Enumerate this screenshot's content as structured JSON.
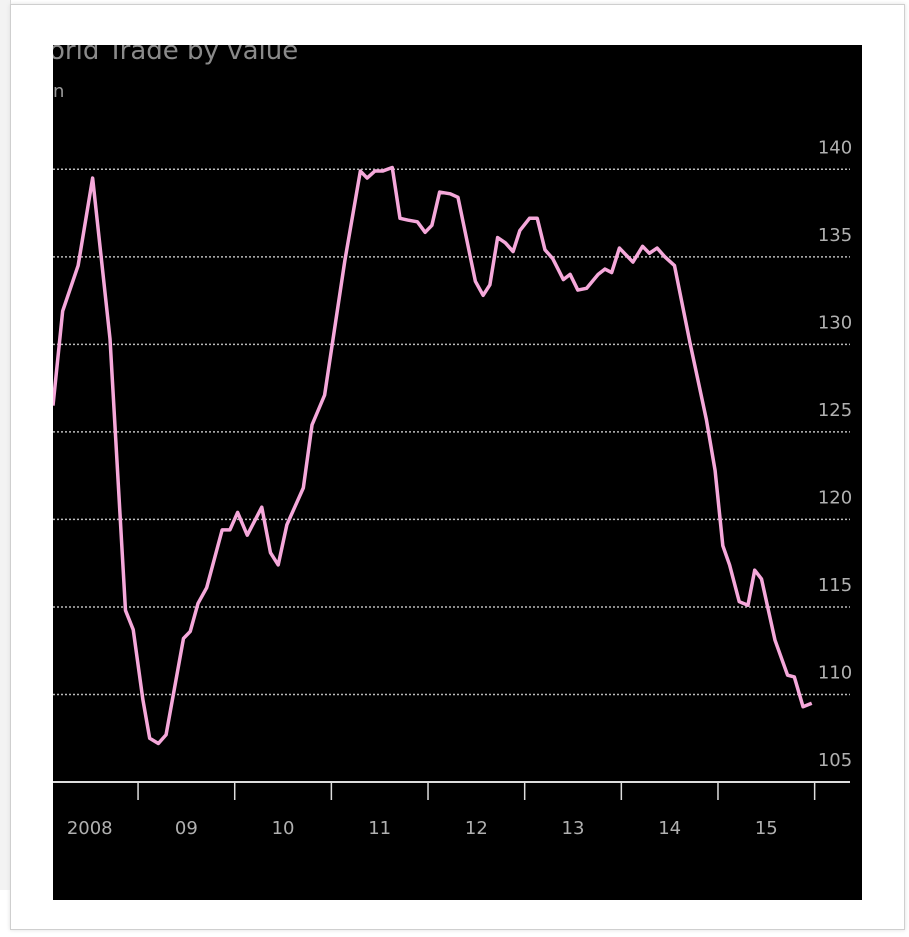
{
  "chart_data": {
    "type": "line",
    "title": "orld Trade by value",
    "subtitle": "n",
    "x": [
      2008.12,
      2008.22,
      2008.38,
      2008.53,
      2008.71,
      2008.87,
      2008.95,
      2009.05,
      2009.12,
      2009.21,
      2009.29,
      2009.47,
      2009.54,
      2009.62,
      2009.71,
      2009.87,
      2009.95,
      2010.03,
      2010.13,
      2010.28,
      2010.37,
      2010.45,
      2010.54,
      2010.71,
      2010.8,
      2010.93,
      2011.14,
      2011.3,
      2011.37,
      2011.45,
      2011.53,
      2011.63,
      2011.71,
      2011.79,
      2011.89,
      2011.97,
      2012.04,
      2012.12,
      2012.23,
      2012.31,
      2012.49,
      2012.57,
      2012.64,
      2012.72,
      2012.8,
      2012.88,
      2012.95,
      2013.05,
      2013.13,
      2013.21,
      2013.29,
      2013.4,
      2013.47,
      2013.55,
      2013.64,
      2013.76,
      2013.83,
      2013.9,
      2013.98,
      2014.12,
      2014.22,
      2014.29,
      2014.37,
      2014.45,
      2014.55,
      2014.71,
      2014.88,
      2014.97,
      2015.05,
      2015.12,
      2015.22,
      2015.31,
      2015.38,
      2015.45,
      2015.59,
      2015.72,
      2015.79,
      2015.88,
      2015.97
    ],
    "series": [
      {
        "color": "#f5a8da",
        "values": [
          126.5,
          131.9,
          134.5,
          139.5,
          130.3,
          114.8,
          113.7,
          109.7,
          107.5,
          107.2,
          107.7,
          113.2,
          113.6,
          115.2,
          116.1,
          119.4,
          119.4,
          120.4,
          119.1,
          120.7,
          118.1,
          117.4,
          119.7,
          121.8,
          125.4,
          127.1,
          134.8,
          139.9,
          139.5,
          139.9,
          139.9,
          140.1,
          137.2,
          137.1,
          137.0,
          136.4,
          136.8,
          138.7,
          138.6,
          138.4,
          133.6,
          132.8,
          133.4,
          136.1,
          135.8,
          135.3,
          136.5,
          137.2,
          137.2,
          135.4,
          134.9,
          133.7,
          134.0,
          133.1,
          133.2,
          134.0,
          134.3,
          134.1,
          135.5,
          134.7,
          135.6,
          135.2,
          135.5,
          135.0,
          134.5,
          130.1,
          125.7,
          122.8,
          118.5,
          117.4,
          115.3,
          115.1,
          117.1,
          116.6,
          113.1,
          111.1,
          111.0,
          109.3,
          109.5
        ]
      }
    ],
    "xlim": [
      2008.12,
      2016.49
    ],
    "xticks": [
      {
        "value": 2008.5,
        "label": "2008"
      },
      {
        "value": 2009.5,
        "label": "09"
      },
      {
        "value": 2010.5,
        "label": "10"
      },
      {
        "value": 2011.5,
        "label": "11"
      },
      {
        "value": 2012.5,
        "label": "12"
      },
      {
        "value": 2013.5,
        "label": "13"
      },
      {
        "value": 2014.5,
        "label": "14"
      },
      {
        "value": 2015.5,
        "label": "15"
      }
    ],
    "ylim": [
      105,
      147.1
    ],
    "yticks": [
      105,
      110,
      115,
      120,
      125,
      130,
      135,
      140
    ],
    "grid": true
  }
}
